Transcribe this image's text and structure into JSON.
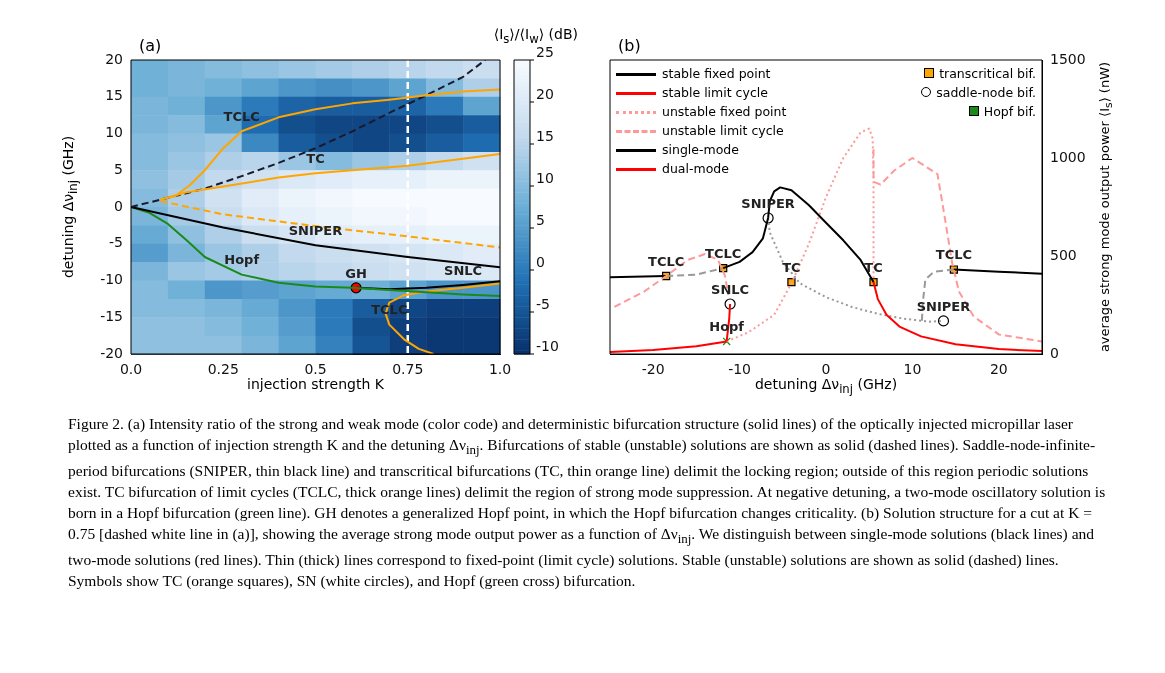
{
  "chart_data": [
    {
      "type": "heatmap",
      "title": "(a)",
      "xlabel": "injection strength K",
      "ylabel": "detuning Δν$_{inj}$ (GHz)",
      "clabel": "⟨I$_{s}$⟩/⟨I$_{w}$⟩ (dB)",
      "x": [
        0.05,
        0.15,
        0.25,
        0.35,
        0.45,
        0.55,
        0.65,
        0.75,
        0.85,
        0.95
      ],
      "xlim": [
        0,
        1
      ],
      "xticks": [
        {
          "value": 0,
          "label": "0.0"
        },
        0.25,
        0.5,
        0.75,
        {
          "value": 1,
          "label": "1.0"
        }
      ],
      "ylim": [
        -20,
        20
      ],
      "yticks": [
        -20,
        -15,
        -10,
        -5,
        0,
        5,
        10,
        15,
        20
      ],
      "clim": [
        -10,
        25
      ],
      "cticks": [
        -10,
        -5,
        0,
        5,
        10,
        15,
        20,
        25
      ],
      "cells": [
        [
          8,
          9,
          10,
          11,
          12,
          13,
          14,
          15,
          16,
          17
        ],
        [
          8,
          9,
          8,
          6,
          4,
          3,
          4,
          6,
          10,
          14
        ],
        [
          9,
          8,
          4,
          0,
          -3,
          -4,
          -4,
          -3,
          0,
          6
        ],
        [
          9,
          10,
          6,
          -2,
          -6,
          -7,
          -7,
          -7,
          -6,
          -4
        ],
        [
          10,
          11,
          12,
          2,
          -4,
          -6,
          -7,
          -6,
          -4,
          -2
        ],
        [
          10,
          12,
          14,
          15,
          12,
          10,
          12,
          14,
          16,
          18
        ],
        [
          11,
          13,
          16,
          18,
          20,
          21,
          22,
          22,
          23,
          23
        ],
        [
          10,
          14,
          18,
          21,
          23,
          24,
          25,
          25,
          25,
          25
        ],
        [
          9,
          13,
          17,
          20,
          22,
          23,
          24,
          24,
          25,
          25
        ],
        [
          7,
          11,
          14,
          17,
          19,
          21,
          22,
          22,
          23,
          23
        ],
        [
          5,
          9,
          12,
          14,
          16,
          17,
          18,
          19,
          20,
          21
        ],
        [
          9,
          12,
          13,
          14,
          15,
          16,
          17,
          18,
          19,
          20
        ],
        [
          10,
          8,
          4,
          5,
          6,
          7,
          8,
          6,
          4,
          4
        ],
        [
          10,
          10,
          9,
          7,
          4,
          0,
          -4,
          -7,
          -8,
          -8
        ],
        [
          11,
          11,
          10,
          8,
          5,
          0,
          -6,
          -8,
          -9,
          -9
        ],
        [
          11,
          11,
          11,
          9,
          6,
          1,
          -5,
          -8,
          -9,
          -9
        ]
      ],
      "series": [
        {
          "type": "line",
          "color": "#ffa500",
          "line_style": "solid",
          "x": [
            0.08,
            0.12,
            0.16,
            0.2,
            0.25,
            0.3,
            0.4,
            0.5,
            0.6,
            0.7,
            0.8,
            0.9,
            1.0
          ],
          "values": [
            1,
            1.5,
            3,
            5,
            8,
            10.3,
            12.2,
            13.3,
            14.1,
            14.6,
            15.2,
            15.7,
            16
          ]
        },
        {
          "type": "line",
          "color": "#ffa500",
          "line_style": "solid",
          "x": [
            0.08,
            0.15,
            0.25,
            0.4,
            0.5,
            0.75,
            1.0
          ],
          "values": [
            1,
            2,
            2.8,
            4,
            4.6,
            5.6,
            7.2
          ]
        },
        {
          "type": "line",
          "color": "#ffa500",
          "line_style": "dashed",
          "x": [
            0.08,
            0.25,
            0.5,
            0.75,
            1.0
          ],
          "values": [
            0.8,
            -1,
            -2.6,
            -4,
            -5.5
          ]
        },
        {
          "type": "line",
          "color": "#1a1a2e",
          "line_style": "dashed",
          "x": [
            0,
            0.08,
            0.2,
            0.3,
            0.4,
            0.5,
            0.6,
            0.7,
            0.8,
            0.9,
            0.96
          ],
          "values": [
            0,
            1,
            2.5,
            4.2,
            6,
            8,
            10.3,
            12.8,
            15.2,
            17.7,
            20
          ]
        },
        {
          "type": "line",
          "color": "#000000",
          "line_style": "solid",
          "x": [
            0,
            0.25,
            0.5,
            0.75,
            1.0
          ],
          "values": [
            0,
            -2.8,
            -5.2,
            -6.8,
            -8.2
          ]
        },
        {
          "type": "line",
          "color": "#1a8a1a",
          "line_style": "solid",
          "x": [
            0,
            0.05,
            0.1,
            0.15,
            0.2,
            0.3,
            0.4,
            0.5,
            0.6,
            0.7,
            0.8,
            0.9,
            1.0
          ],
          "values": [
            0,
            -0.8,
            -2.3,
            -4.5,
            -6.8,
            -9.2,
            -10.3,
            -10.8,
            -11,
            -11.3,
            -11.6,
            -11.9,
            -12.1
          ]
        },
        {
          "type": "line",
          "color": "#000000",
          "line_style": "solid",
          "x": [
            0.61,
            0.7,
            0.8,
            0.9,
            1.0
          ],
          "values": [
            -11,
            -11.2,
            -11,
            -10.6,
            -10.1
          ]
        },
        {
          "type": "line",
          "color": "#ffa500",
          "line_style": "solid",
          "x": [
            1.0,
            0.9,
            0.8,
            0.74,
            0.7,
            0.69,
            0.7,
            0.74,
            0.78,
            0.82
          ],
          "values": [
            -10.4,
            -11,
            -11.5,
            -12,
            -13,
            -14.5,
            -16,
            -18,
            -19.3,
            -20
          ]
        },
        {
          "type": "scatter",
          "color": "#ff0000",
          "marker": "circle",
          "x": [
            0.61
          ],
          "values": [
            -11
          ]
        }
      ],
      "ref_lines": [
        {
          "axis": "x",
          "value": 0.75,
          "color": "#ffffff",
          "line_style": "dashed"
        }
      ],
      "annotations": [
        {
          "text": "TCLC",
          "x": 0.3,
          "y": 10.3
        },
        {
          "text": "TC",
          "x": 0.5,
          "y": 4.6
        },
        {
          "text": "SNIPER",
          "x": 0.5,
          "y": -5.2
        },
        {
          "text": "Hopf",
          "x": 0.3,
          "y": -9.2
        },
        {
          "text": "GH",
          "x": 0.61,
          "y": -11
        },
        {
          "text": "SNLC",
          "x": 0.9,
          "y": -10.6
        },
        {
          "text": "TCLC",
          "x": 0.7,
          "y": -16
        },
        "Figure 2. (a) Intensity ratio of the strong and weak mode (color code) and deterministic bifurcation structure (solid lines) of the optically injected micropillar laser plotted as a function of injection strength K and the detuning Δν$_{inj}$. Bifurcations of stable (unstable) solutions are shown as solid (dashed lines). Saddle-node-infinite-period bifurcations (SNIPER, thin black line) and transcritical bifurcations (TC, thin orange line) delimit the locking region; outside of this region periodic solutions exist. TC bifurcation of limit cycles (TCLC, thick orange lines) delimit the region of strong mode suppression. At negative detuning, a two-mode oscillatory solution is born in a Hopf bifurcation (green line). GH denotes a generalized Hopf point, in which the Hopf bifurcation changes criticality. (b) Solution structure for a cut at K = 0.75 [dashed white line in (a)], showing the average strong mode output power as a function of Δν$_{inj}$. We distinguish between single-mode solutions (black lines) and two-mode solutions (red lines). Thin (thick) lines correspond to fixed-point (limit cycle) solutions. Stable (unstable) solutions are shown as solid (dashed) lines. Symbols show TC (orange squares), SN (white circles), and Hopf (green cross) bifurcation."
      ]
    },
    {
      "type": "line",
      "title": "(b)",
      "xlabel": "detuning Δν$_{inj}$ (GHz)",
      "ylabel": "average strong mode output power ⟨I$_{s}$⟩ (nW)",
      "legend": "top left",
      "xlim": [
        -25,
        25
      ],
      "xticks": [
        -20,
        -10,
        0,
        10,
        20
      ],
      "ylim": [
        0,
        1500
      ],
      "yticks": [
        0,
        500,
        1000,
        1500
      ],
      "series": [
        {
          "name": "stable fixed point",
          "type": "line",
          "color": "#000000",
          "line_style": "solid",
          "x": [
            -6.7,
            -6.5,
            -6,
            -5.3,
            -4,
            -2,
            0,
            2,
            4,
            5.5
          ],
          "values": [
            694,
            780,
            830,
            850,
            835,
            760,
            670,
            580,
            480,
            367
          ]
        },
        {
          "name": "stable limit cycle",
          "type": "line",
          "color": "#ff0000",
          "line_style": "solid",
          "x": [
            -11.5,
            -11.2,
            -11.1
          ],
          "values": [
            64,
            180,
            255
          ]
        },
        {
          "name": "unstable fixed point",
          "type": "line",
          "color": "#ff9999",
          "line_style": "dotted",
          "x": [
            -11.5,
            -9,
            -6,
            -4,
            -2,
            0,
            2,
            4,
            5,
            5.4,
            5.5,
            5.5
          ],
          "values": [
            64,
            110,
            200,
            360,
            560,
            800,
            1000,
            1130,
            1150,
            1100,
            900,
            370
          ]
        },
        {
          "name": "unstable limit cycle",
          "type": "line",
          "color": "#ff9999",
          "line_style": "dashed",
          "x": [
            -24.5,
            -21,
            -18.5,
            -16,
            -14,
            -12.5,
            -11.7,
            -11.3,
            null,
            5.5,
            5.5,
            6.3,
            7.9,
            10,
            12.9,
            13.8,
            14.6,
            15.4,
            17.1,
            20,
            25
          ],
          "values": [
            240,
            320,
            398,
            480,
            510,
            480,
            400,
            300,
            null,
            1045,
            880,
            864,
            936,
            1000,
            918,
            682,
            464,
            318,
            191,
            100,
            64
          ]
        },
        {
          "name": "single-mode",
          "type": "line",
          "color": "#000000",
          "line_style": "solid",
          "x": [
            -25,
            -18.5,
            null,
            -11.9,
            -10,
            -8.5,
            -7.3,
            -6.7,
            null,
            14.8,
            20,
            25
          ],
          "values": [
            392,
            398,
            null,
            438,
            470,
            520,
            590,
            694,
            null,
            431,
            420,
            410
          ]
        },
        {
          "name": "dual-mode",
          "type": "line",
          "color": "#ff0000",
          "line_style": "solid",
          "x": [
            -25,
            -20,
            -15,
            -11.5,
            null,
            5.5,
            6,
            7,
            8.5,
            11,
            15,
            20,
            25
          ],
          "values": [
            10,
            20,
            40,
            64,
            null,
            367,
            280,
            200,
            140,
            90,
            50,
            25,
            15
          ]
        },
        {
          "type": "line",
          "color": "#999999",
          "line_style": "dashed",
          "x": [
            -18.5,
            -15,
            -11.9,
            null,
            11.1,
            11.2,
            11.5,
            12.5,
            14.8
          ],
          "values": [
            398,
            405,
            438,
            null,
            170,
            260,
            380,
            420,
            431
          ]
        },
        {
          "type": "line",
          "color": "#999999",
          "line_style": "dotted",
          "x": [
            -6.7,
            -6.5,
            -5,
            -3,
            0,
            3,
            6,
            9,
            12,
            13.6
          ],
          "values": [
            694,
            620,
            470,
            360,
            290,
            240,
            205,
            180,
            165,
            169
          ]
        },
        {
          "name": "transcritical bif.",
          "type": "scatter",
          "color": "#ffa500",
          "marker": "square",
          "x": [
            -18.5,
            -11.9,
            -4,
            5.5,
            14.8
          ],
          "values": [
            398,
            438,
            367,
            367,
            431
          ]
        },
        {
          "name": "saddle-node bif.",
          "type": "scatter",
          "color": "#ffffff",
          "marker": "circle",
          "x": [
            -6.7,
            -11.1,
            13.6
          ],
          "values": [
            694,
            255,
            169
          ]
        },
        {
          "name": "Hopf bif.",
          "type": "scatter",
          "color": "#1a8a1a",
          "marker": "cross",
          "x": [
            -11.5
          ],
          "values": [
            64
          ]
        }
      ],
      "annotations": [
        {
          "text": "TCLC",
          "x": -18.5,
          "y": 398
        },
        {
          "text": "TCLC",
          "x": -11.9,
          "y": 438
        },
        {
          "text": "TC",
          "x": -4,
          "y": 367
        },
        {
          "text": "TC",
          "x": 5.5,
          "y": 367
        },
        {
          "text": "TCLC",
          "x": 14.8,
          "y": 431
        },
        {
          "text": "SNIPER",
          "x": -6.7,
          "y": 694
        },
        {
          "text": "SNIPER",
          "x": 13.6,
          "y": 169
        },
        {
          "text": "SNLC",
          "x": -11.1,
          "y": 255
        },
        {
          "text": "Hopf",
          "x": -11.5,
          "y": 64
        }
      ]
    }
  ]
}
